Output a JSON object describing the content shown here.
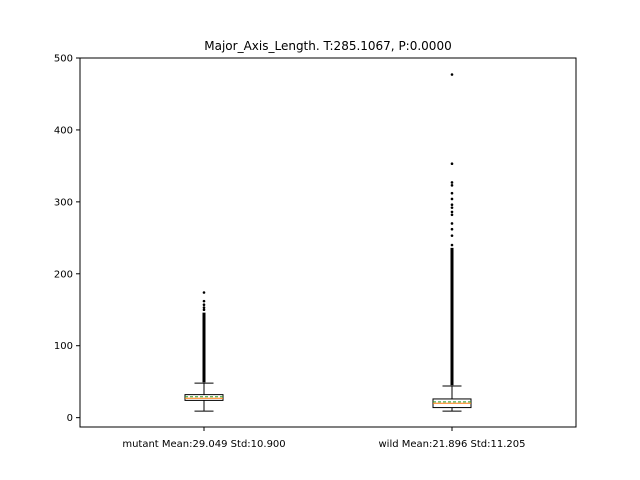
{
  "chart_data": {
    "type": "box",
    "title": "Major_Axis_Length. T:285.1067, P:0.0000",
    "xlabel": "",
    "ylabel": "",
    "ylim": [
      -13,
      500
    ],
    "yticks": [
      0,
      100,
      200,
      300,
      400,
      500
    ],
    "grid": false,
    "series": [
      {
        "category": "mutant Mean:29.049 Std:10.900",
        "whisker_low": 9,
        "q1": 24,
        "median": 27,
        "mean": 29.049,
        "q3": 32,
        "whisker_high": 48,
        "outlier_range": [
          49,
          146
        ],
        "outliers": [
          150,
          153,
          157,
          162,
          174
        ]
      },
      {
        "category": "wild Mean:21.896 Std:11.205",
        "whisker_low": 9,
        "q1": 14,
        "median": 20,
        "mean": 21.896,
        "q3": 26,
        "whisker_high": 44,
        "outlier_range": [
          45,
          236
        ],
        "outliers": [
          240,
          253,
          262,
          270,
          282,
          286,
          292,
          296,
          304,
          312,
          323,
          327,
          353,
          477
        ]
      }
    ],
    "colors": {
      "box_edge": "#000000",
      "box_fill": "#ffffff",
      "median": "#ff7f0e",
      "mean": "#2ca02c",
      "outlier": "#000000"
    }
  }
}
